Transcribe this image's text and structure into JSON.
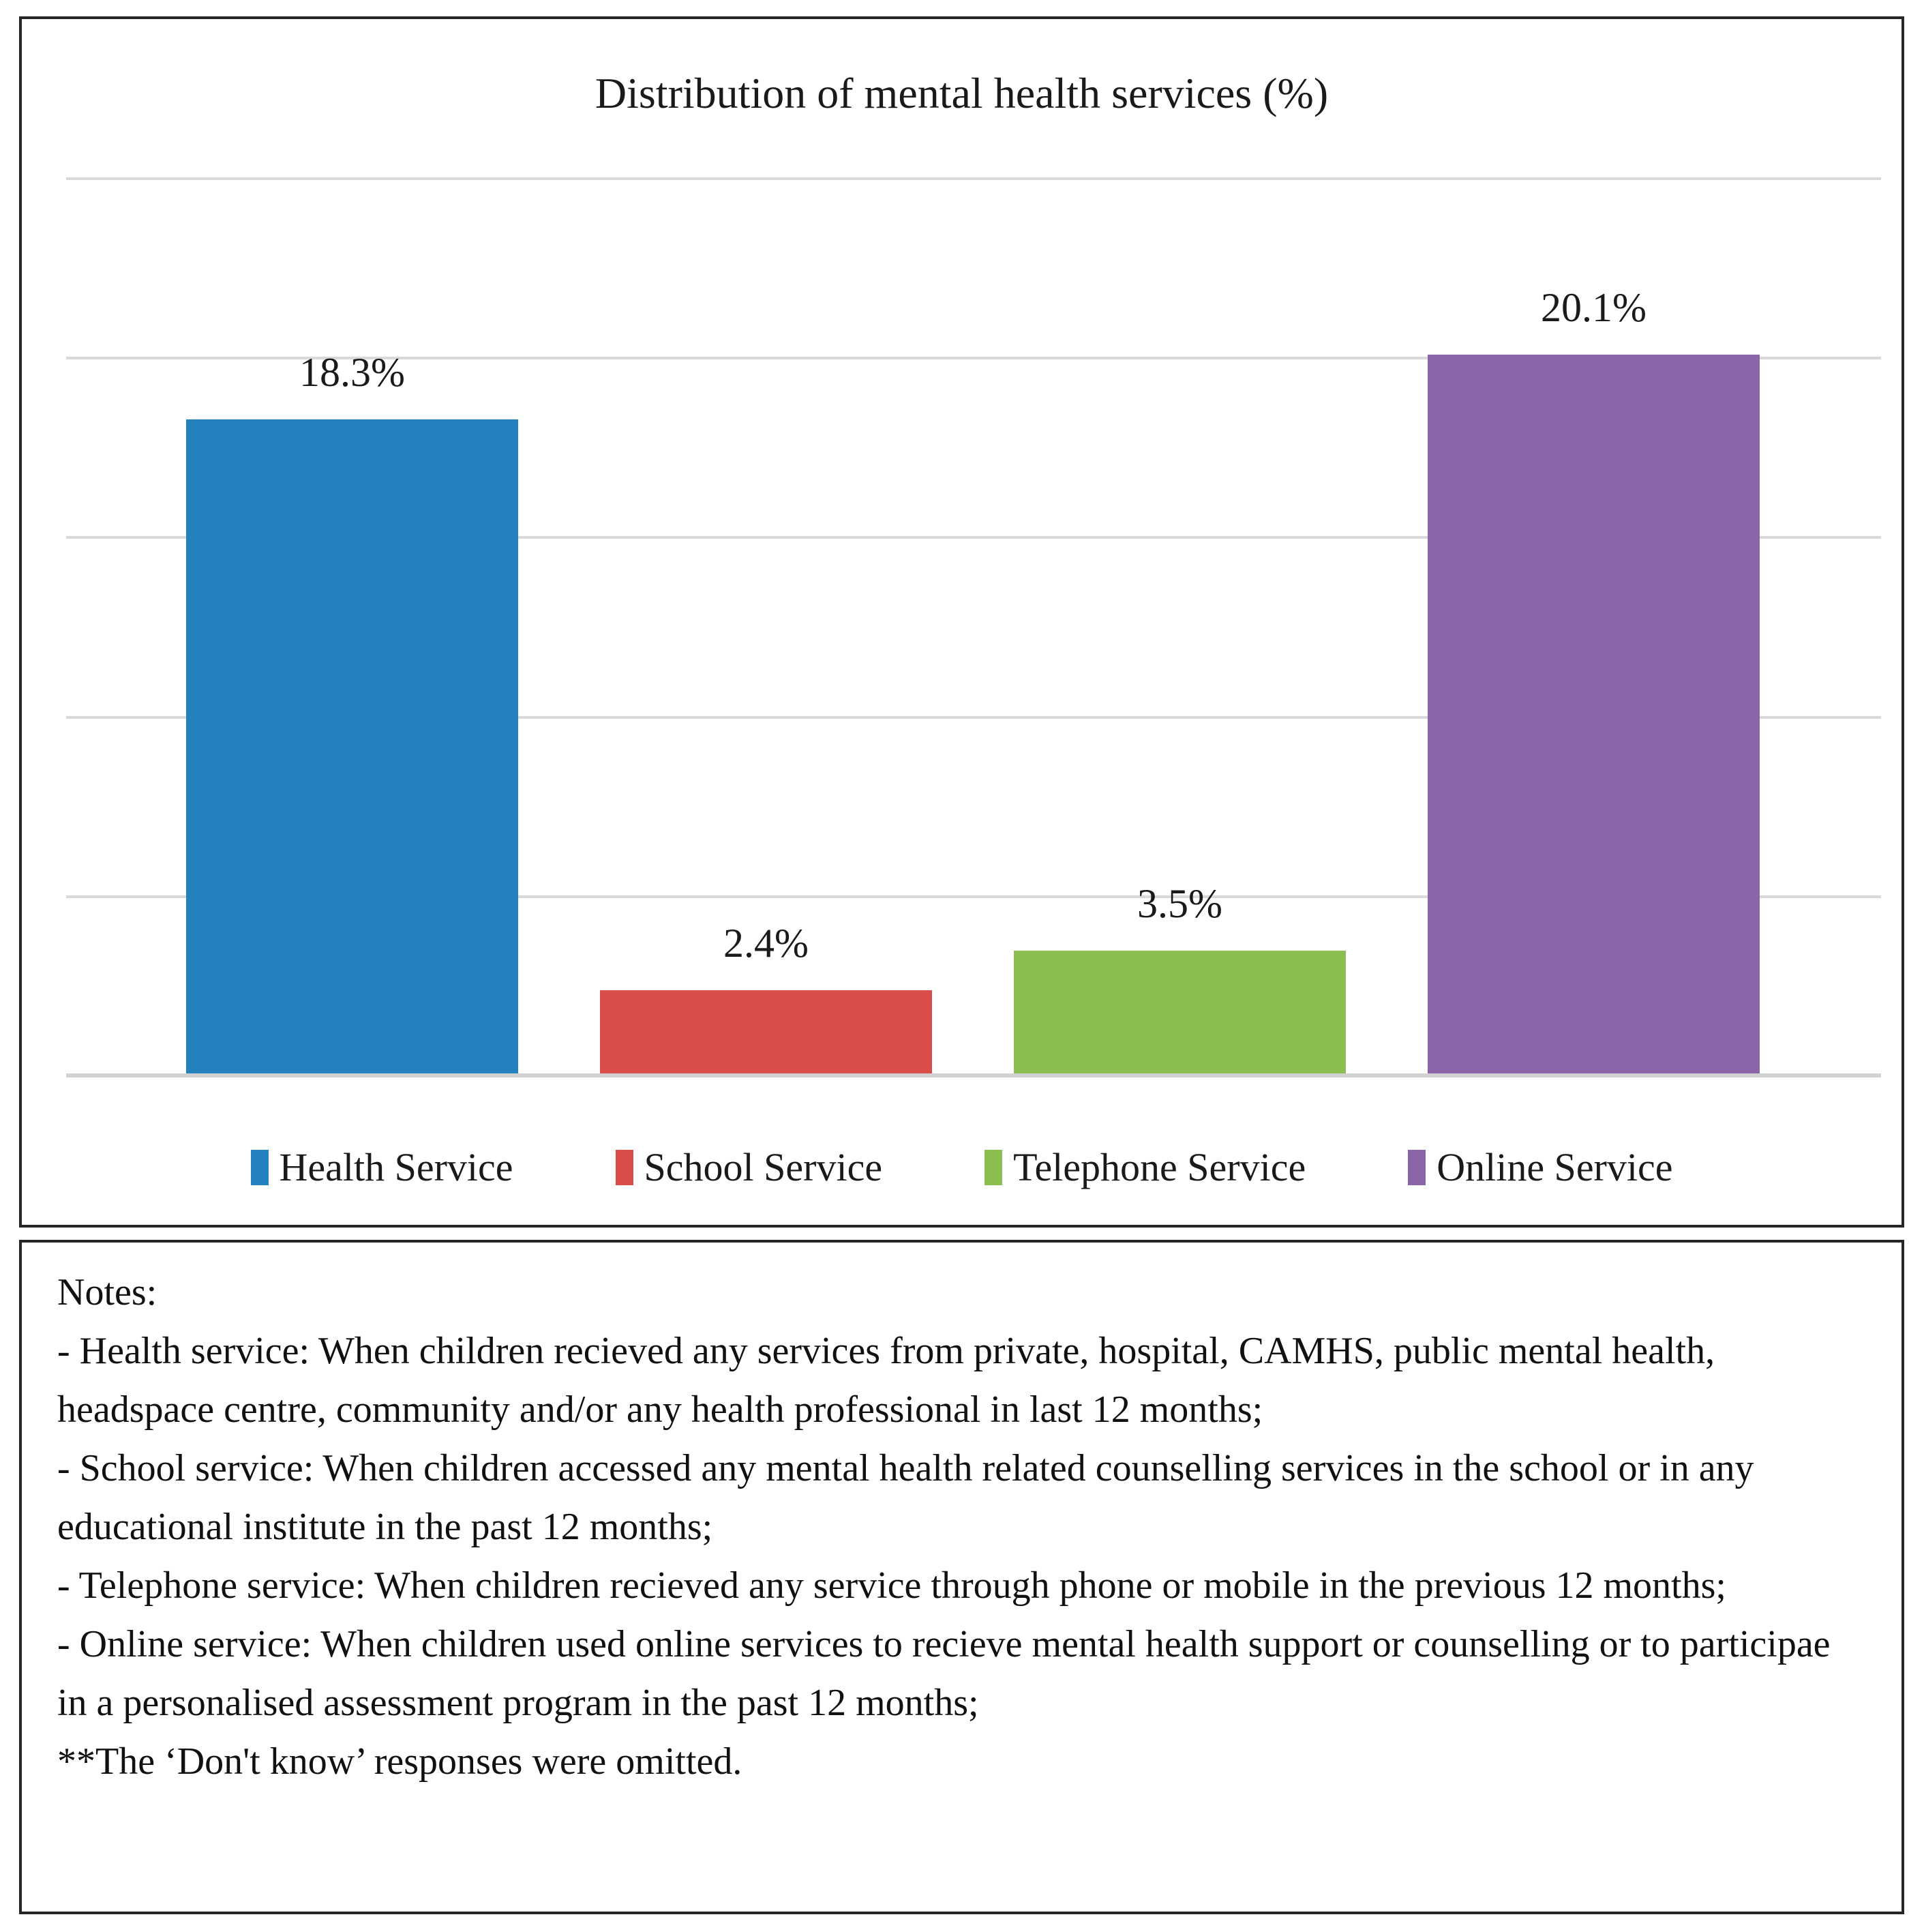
{
  "chart_data": {
    "type": "bar",
    "title": "Distribution of mental health services (%)",
    "categories": [
      "Health Service",
      "School Service",
      "Telephone Service",
      "Online Service"
    ],
    "values": [
      18.3,
      2.4,
      3.5,
      20.1
    ],
    "data_labels": [
      "18.3%",
      "2.4%",
      "3.5%",
      "20.1%"
    ],
    "colors": [
      "#2581BE",
      "#D94E4B",
      "#8BBE51",
      "#8A65A7"
    ],
    "xlabel": "",
    "ylabel": "",
    "ylim": [
      0,
      25
    ],
    "grid_step": 5,
    "grid": "horizontal",
    "y_tick_labels_visible": false,
    "legend_position": "bottom",
    "legend": [
      {
        "label": "Health Service",
        "color": "#2581BE"
      },
      {
        "label": "School Service",
        "color": "#D94E4B"
      },
      {
        "label": "Telephone Service",
        "color": "#8BBE51"
      },
      {
        "label": "Online Service",
        "color": "#8A65A7"
      }
    ]
  },
  "notes": {
    "title": "Notes:",
    "items": [
      "- Health service: When children recieved any services from private, hospital, CAMHS, public mental health, headspace centre, community and/or any health professional in last 12 months;",
      "- School service: When children accessed any mental health related counselling services in the school or in any educational institute in the past 12 months;",
      "- Telephone service: When children recieved any service through phone or mobile in the previous 12 months;",
      "- Online service: When children used online services to recieve mental health support or counselling or to participae in a personalised assessment program in the past 12 months;",
      "**The ‘Don't know’ responses were omitted."
    ]
  }
}
